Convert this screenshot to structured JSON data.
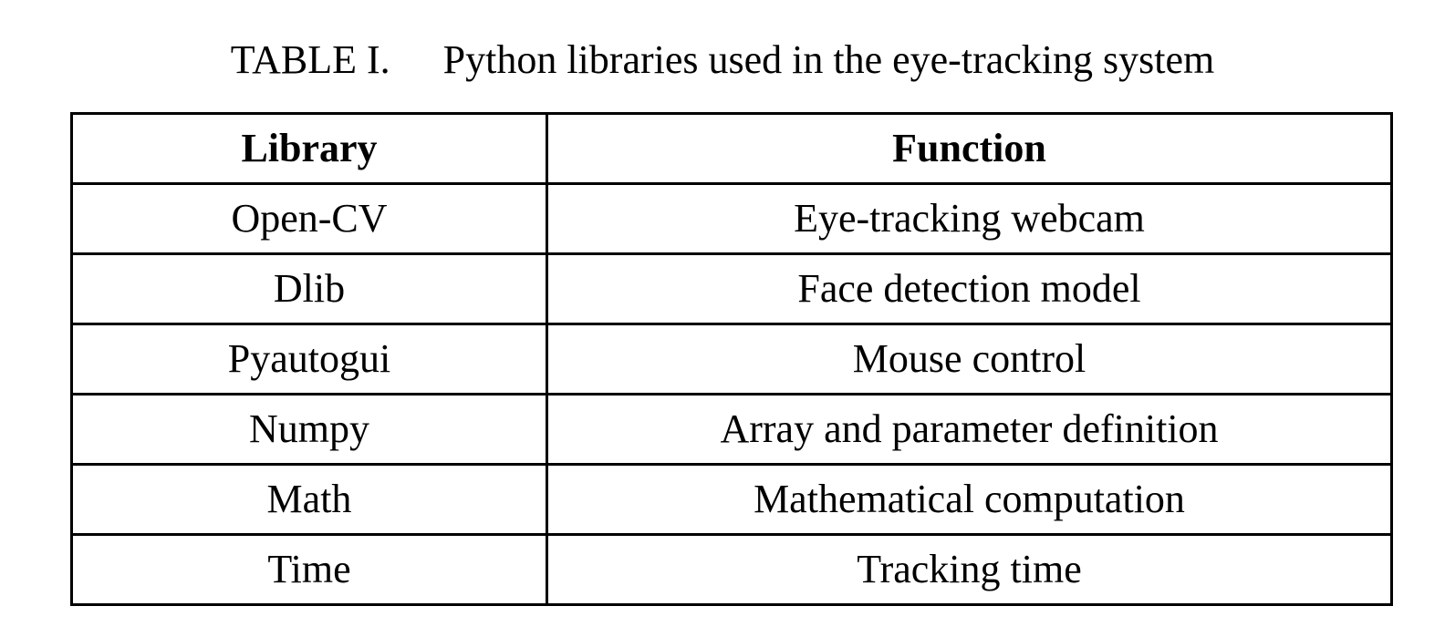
{
  "caption": {
    "label": "TABLE I.",
    "title": "Python libraries used in the eye-tracking system"
  },
  "table": {
    "headers": [
      "Library",
      "Function"
    ],
    "rows": [
      [
        "Open-CV",
        "Eye-tracking webcam"
      ],
      [
        "Dlib",
        "Face detection model"
      ],
      [
        "Pyautogui",
        "Mouse control"
      ],
      [
        "Numpy",
        "Array and parameter definition"
      ],
      [
        "Math",
        "Mathematical computation"
      ],
      [
        "Time",
        "Tracking time"
      ]
    ]
  }
}
